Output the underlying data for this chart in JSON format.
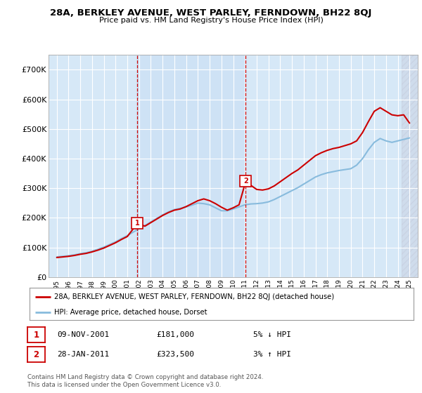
{
  "title": "28A, BERKLEY AVENUE, WEST PARLEY, FERNDOWN, BH22 8QJ",
  "subtitle": "Price paid vs. HM Land Registry's House Price Index (HPI)",
  "background_color": "#ffffff",
  "plot_bg_color": "#d6e8f7",
  "grid_color": "#ffffff",
  "ylim": [
    0,
    750000
  ],
  "yticks": [
    0,
    100000,
    200000,
    300000,
    400000,
    500000,
    600000,
    700000
  ],
  "ytick_labels": [
    "£0",
    "£100K",
    "£200K",
    "£300K",
    "£400K",
    "£500K",
    "£600K",
    "£700K"
  ],
  "sale1_date_label": "09-NOV-2001",
  "sale1_price": 181000,
  "sale1_price_label": "£181,000",
  "sale1_hpi_label": "5% ↓ HPI",
  "sale2_date_label": "28-JAN-2011",
  "sale2_price": 323500,
  "sale2_price_label": "£323,500",
  "sale2_hpi_label": "3% ↑ HPI",
  "vline1_x": 2001.85,
  "vline2_x": 2011.07,
  "legend_line1": "28A, BERKLEY AVENUE, WEST PARLEY, FERNDOWN, BH22 8QJ (detached house)",
  "legend_line2": "HPI: Average price, detached house, Dorset",
  "footer": "Contains HM Land Registry data © Crown copyright and database right 2024.\nThis data is licensed under the Open Government Licence v3.0.",
  "line_color_red": "#cc0000",
  "line_color_blue": "#88bbdd",
  "hpi_years": [
    1995.0,
    1995.5,
    1996.0,
    1996.5,
    1997.0,
    1997.5,
    1998.0,
    1998.5,
    1999.0,
    1999.5,
    2000.0,
    2000.5,
    2001.0,
    2001.5,
    2002.0,
    2002.5,
    2003.0,
    2003.5,
    2004.0,
    2004.5,
    2005.0,
    2005.5,
    2006.0,
    2006.5,
    2007.0,
    2007.5,
    2008.0,
    2008.5,
    2009.0,
    2009.5,
    2010.0,
    2010.5,
    2011.0,
    2011.5,
    2012.0,
    2012.5,
    2013.0,
    2013.5,
    2014.0,
    2014.5,
    2015.0,
    2015.5,
    2016.0,
    2016.5,
    2017.0,
    2017.5,
    2018.0,
    2018.5,
    2019.0,
    2019.5,
    2020.0,
    2020.5,
    2021.0,
    2021.5,
    2022.0,
    2022.5,
    2023.0,
    2023.5,
    2024.0,
    2024.5,
    2025.0
  ],
  "hpi_values": [
    68000,
    70000,
    72000,
    75000,
    79000,
    82000,
    87000,
    94000,
    101000,
    110000,
    119000,
    130000,
    140000,
    152000,
    163000,
    174000,
    186000,
    198000,
    210000,
    220000,
    228000,
    232000,
    237000,
    243000,
    250000,
    248000,
    244000,
    234000,
    224000,
    224000,
    230000,
    237000,
    244000,
    247000,
    248000,
    250000,
    254000,
    262000,
    272000,
    282000,
    292000,
    302000,
    314000,
    326000,
    338000,
    346000,
    352000,
    356000,
    360000,
    363000,
    366000,
    378000,
    400000,
    430000,
    455000,
    468000,
    460000,
    455000,
    460000,
    465000,
    470000
  ],
  "red_years": [
    1995.0,
    1995.5,
    1996.0,
    1996.5,
    1997.0,
    1997.5,
    1998.0,
    1998.5,
    1999.0,
    1999.5,
    2000.0,
    2000.5,
    2001.0,
    2001.85,
    2002.5,
    2003.0,
    2003.5,
    2004.0,
    2004.5,
    2005.0,
    2005.5,
    2006.0,
    2006.5,
    2007.0,
    2007.5,
    2008.0,
    2008.5,
    2009.0,
    2009.5,
    2010.0,
    2010.5,
    2011.07,
    2011.5,
    2012.0,
    2012.5,
    2013.0,
    2013.5,
    2014.0,
    2014.5,
    2015.0,
    2015.5,
    2016.0,
    2016.5,
    2017.0,
    2017.5,
    2018.0,
    2018.5,
    2019.0,
    2019.5,
    2020.0,
    2020.5,
    2021.0,
    2021.5,
    2022.0,
    2022.5,
    2023.0,
    2023.5,
    2024.0,
    2024.5,
    2025.0
  ],
  "red_values": [
    66000,
    68000,
    70000,
    73000,
    77000,
    80000,
    85000,
    91000,
    98000,
    107000,
    116000,
    127000,
    137000,
    181000,
    172000,
    184000,
    196000,
    208000,
    218000,
    226000,
    230000,
    238000,
    248000,
    258000,
    264000,
    258000,
    248000,
    236000,
    226000,
    234000,
    244000,
    323500,
    310000,
    296000,
    294000,
    298000,
    308000,
    322000,
    336000,
    350000,
    362000,
    378000,
    394000,
    410000,
    420000,
    428000,
    434000,
    438000,
    444000,
    450000,
    460000,
    488000,
    525000,
    560000,
    572000,
    560000,
    548000,
    545000,
    548000,
    520000
  ],
  "xlim": [
    1994.3,
    2025.7
  ],
  "xtick_years": [
    1995,
    1996,
    1997,
    1998,
    1999,
    2000,
    2001,
    2002,
    2003,
    2004,
    2005,
    2006,
    2007,
    2008,
    2009,
    2010,
    2011,
    2012,
    2013,
    2014,
    2015,
    2016,
    2017,
    2018,
    2019,
    2020,
    2021,
    2022,
    2023,
    2024,
    2025
  ]
}
